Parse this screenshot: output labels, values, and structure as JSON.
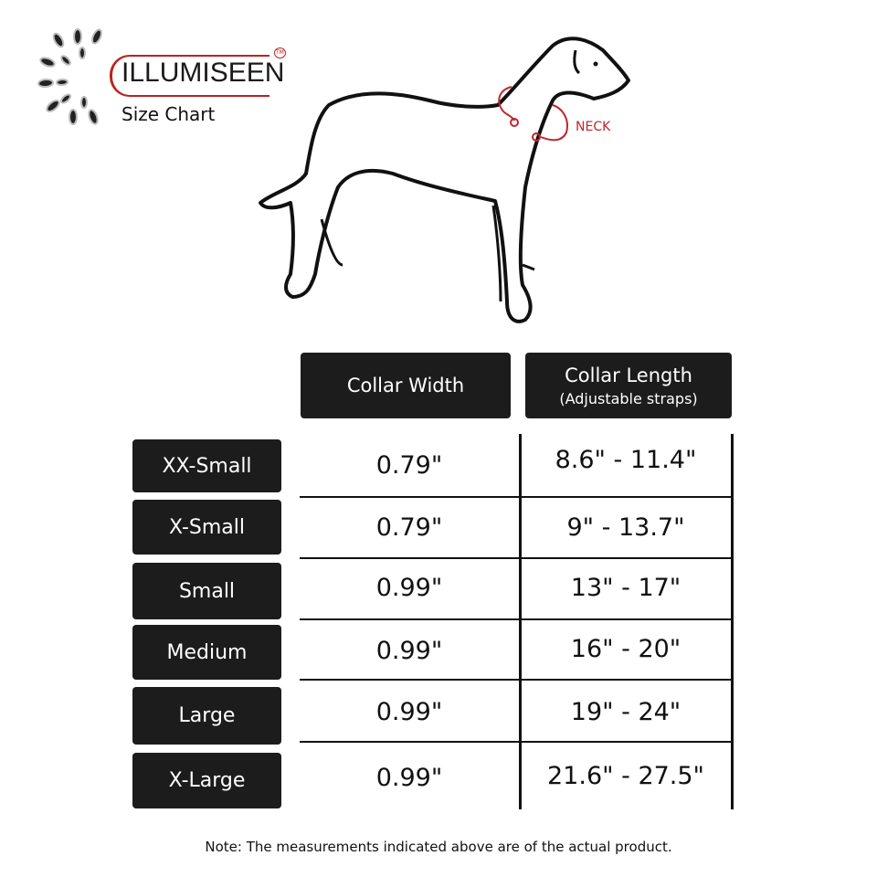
{
  "logo": {
    "brand": "ILLUMISEEN",
    "trademark": "TM",
    "subtitle": "Size Chart"
  },
  "illustration": {
    "neck_label": "NECK",
    "accent_color": "#c0262c"
  },
  "table": {
    "headers": [
      {
        "title": "Collar Width",
        "subtitle": ""
      },
      {
        "title": "Collar Length",
        "subtitle": "(Adjustable straps)"
      }
    ],
    "rows": [
      {
        "size": "XX-Small",
        "width": "0.79\"",
        "length": "8.6\" - 11.4\""
      },
      {
        "size": "X-Small",
        "width": "0.79\"",
        "length": "9\" - 13.7\""
      },
      {
        "size": "Small",
        "width": "0.99\"",
        "length": "13\" - 17\""
      },
      {
        "size": "Medium",
        "width": "0.99\"",
        "length": "16\" - 20\""
      },
      {
        "size": "Large",
        "width": "0.99\"",
        "length": "19\" - 24\""
      },
      {
        "size": "X-Large",
        "width": "0.99\"",
        "length": "21.6\" - 27.5\""
      }
    ]
  },
  "note": "Note: The measurements indicated above are of the actual product."
}
